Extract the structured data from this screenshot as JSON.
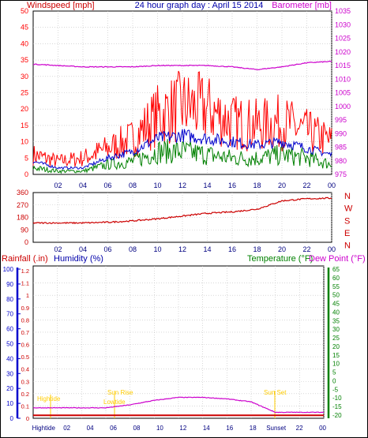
{
  "header": {
    "title": "24 hour graph day : April 15 2014",
    "left_label": "Windspeed [mph]",
    "right_label": "Barometer [mb]"
  },
  "colors": {
    "background": "#ffffff",
    "plot_background": "#ffffff",
    "grid": "#c0c0c0",
    "border": "#000000",
    "gust": "#ff0000",
    "wind_avg": "#0000cc",
    "wind_low": "#008000",
    "barometer": "#cc00cc",
    "direction": "#cc0000",
    "rain": "#cc0000",
    "humidity": "#0000cc",
    "temperature": "#008000",
    "dewpoint": "#cc00cc",
    "day_marker": "#ffcc00"
  },
  "wind_chart": {
    "left_ticks": [
      "0",
      "5",
      "10",
      "15",
      "20",
      "25",
      "30",
      "35",
      "40",
      "45",
      "50"
    ],
    "right_ticks": [
      "975",
      "980",
      "985",
      "990",
      "995",
      "1000",
      "1005",
      "1010",
      "1015",
      "1020",
      "1025",
      "1030",
      "1035"
    ],
    "x_ticks": [
      "02",
      "04",
      "06",
      "08",
      "10",
      "12",
      "14",
      "16",
      "18",
      "20",
      "22",
      "00"
    ]
  },
  "dir_chart": {
    "left_ticks": [
      "0",
      "90",
      "180",
      "270",
      "360"
    ],
    "compass": [
      "N",
      "W",
      "S",
      "E",
      "N"
    ],
    "x_ticks": [
      "02",
      "04",
      "06",
      "08",
      "10",
      "12",
      "14",
      "16",
      "18",
      "20",
      "22",
      "00"
    ]
  },
  "bottom_chart": {
    "rain_label": "Rainfall (.in)",
    "humidity_label": "Humidity (%)",
    "temp_label": "Temperature (°F)",
    "dew_label": "Dew Point (°F)",
    "humidity_ticks": [
      "0",
      "10",
      "20",
      "30",
      "40",
      "50",
      "60",
      "70",
      "80",
      "90",
      "100"
    ],
    "rain_ticks": [
      "0",
      "0.1",
      "0.2",
      "0.3",
      "0.4",
      "0.5",
      "0.6",
      "0.7",
      "0.8",
      "0.9",
      "1",
      "1.1",
      "1.2"
    ],
    "temp_ticks": [
      "-20",
      "-15",
      "-10",
      "-5",
      "0",
      "5",
      "10",
      "15",
      "20",
      "25",
      "30",
      "35",
      "40",
      "45",
      "50",
      "55",
      "60",
      "65"
    ],
    "x_ticks": [
      "Hightide",
      "02",
      "04",
      "06",
      "08",
      "10",
      "12",
      "14",
      "16",
      "18",
      "Sunset",
      "22",
      "00"
    ],
    "annotations": {
      "hightide": "Hightide",
      "sunrise_top": "Sun Rise",
      "sunrise_bottom": "Lowtide",
      "sunset": "Sun Set"
    }
  },
  "chart_data": [
    {
      "type": "line",
      "title": "24 hour graph day : April 15 2014",
      "ylabel": "Windspeed [mph]",
      "y2label": "Barometer [mb]",
      "ylim": [
        0,
        50
      ],
      "y2lim": [
        975,
        1035
      ],
      "x": [
        "00",
        "02",
        "04",
        "06",
        "08",
        "10",
        "12",
        "14",
        "16",
        "18",
        "20",
        "22",
        "00"
      ],
      "series": [
        {
          "name": "Windspeed gust",
          "axis": "left",
          "values": [
            6,
            4,
            5,
            8,
            11,
            18,
            21,
            20,
            16,
            15,
            16,
            13,
            10
          ]
        },
        {
          "name": "Windspeed average",
          "axis": "left",
          "values": [
            4,
            2,
            2,
            5,
            7,
            11,
            12,
            11,
            10,
            9,
            10,
            8,
            6
          ]
        },
        {
          "name": "Windspeed low",
          "axis": "left",
          "values": [
            2,
            1,
            1,
            3,
            4,
            7,
            7,
            6,
            5,
            5,
            6,
            5,
            3
          ]
        },
        {
          "name": "Barometer",
          "axis": "right",
          "values": [
            1015.5,
            1015,
            1014.5,
            1014.5,
            1014.5,
            1015,
            1015,
            1015,
            1014.5,
            1013.5,
            1014.5,
            1016,
            1016.5
          ]
        }
      ]
    },
    {
      "type": "line",
      "ylim": [
        0,
        360
      ],
      "x": [
        "00",
        "02",
        "04",
        "06",
        "08",
        "10",
        "12",
        "14",
        "16",
        "18",
        "20",
        "22",
        "00"
      ],
      "series": [
        {
          "name": "Wind direction",
          "values": [
            140,
            140,
            140,
            145,
            155,
            170,
            190,
            210,
            220,
            240,
            300,
            315,
            320
          ]
        }
      ]
    },
    {
      "type": "line",
      "ylim": [
        0,
        100
      ],
      "y2lim": [
        -20,
        65
      ],
      "x": [
        "00",
        "02",
        "04",
        "06",
        "08",
        "10",
        "12",
        "14",
        "16",
        "18",
        "20",
        "22",
        "00"
      ],
      "series": [
        {
          "name": "Humidity",
          "axis": "left",
          "values": [
            7,
            7,
            7,
            7,
            9,
            12,
            14,
            14,
            13,
            11,
            4,
            4,
            4
          ]
        },
        {
          "name": "Rainfall",
          "axis": "left",
          "values": [
            2,
            2,
            2,
            2,
            2,
            2,
            2,
            2,
            2,
            2,
            2,
            2,
            2
          ]
        }
      ]
    }
  ]
}
